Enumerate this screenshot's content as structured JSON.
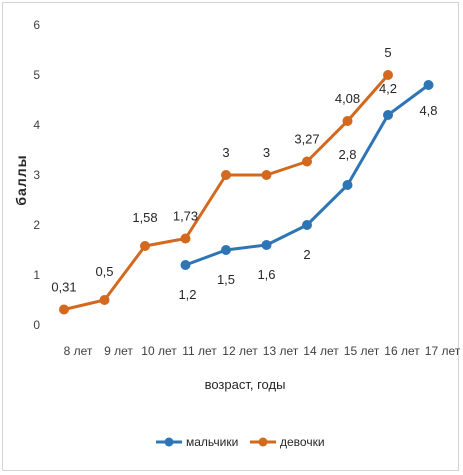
{
  "chart_data": {
    "type": "line",
    "categories": [
      "8 лет",
      "9 лет",
      "10 лет",
      "11 лет",
      "12 лет",
      "13 лет",
      "14 лет",
      "15 лет",
      "16 лет",
      "17 лет"
    ],
    "xlabel": "возраст, годы",
    "ylabel": "баллы",
    "ylim": [
      0,
      6
    ],
    "yticks": [
      "0",
      "1",
      "2",
      "3",
      "4",
      "5",
      "6"
    ],
    "grid": false,
    "legend_position": "bottom",
    "series": [
      {
        "name": "мальчики",
        "color": "#2E75B6",
        "values": [
          null,
          null,
          null,
          1.2,
          1.5,
          1.6,
          2,
          2.8,
          4.2,
          4.8
        ],
        "labels": [
          null,
          null,
          null,
          "1,2",
          "1,5",
          "1,6",
          "2",
          "2,8",
          "4,2",
          "4,8"
        ]
      },
      {
        "name": "девочки",
        "color": "#D2691E",
        "values": [
          0.31,
          0.5,
          1.58,
          1.73,
          3,
          3,
          3.27,
          4.08,
          5,
          null
        ],
        "labels": [
          "0,31",
          "0,5",
          "1,58",
          "1,73",
          "3",
          "3",
          "3,27",
          "4,08",
          "5",
          null
        ]
      }
    ]
  }
}
